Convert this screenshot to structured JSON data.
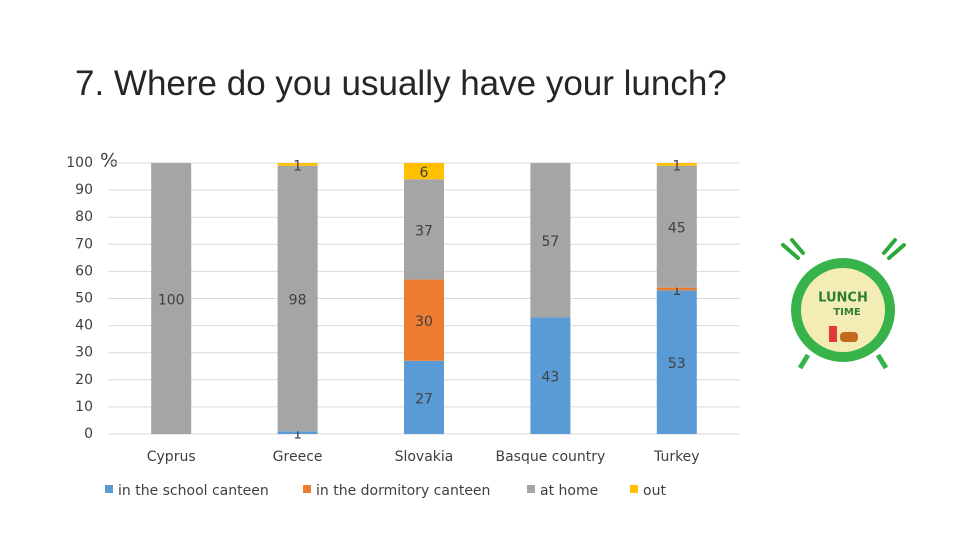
{
  "chart_data": {
    "type": "stacked_bar",
    "title": "7. Where do you usually have your lunch?",
    "y_unit": "%",
    "categories": [
      "Cyprus",
      "Greece",
      "Slovakia",
      "Basque country",
      "Turkey"
    ],
    "series": [
      {
        "name": "in the school canteen",
        "color": "#5b9bd5",
        "values": [
          null,
          1,
          27,
          43,
          53
        ]
      },
      {
        "name": "in the dormitory canteen",
        "color": "#ed7d31",
        "values": [
          null,
          null,
          30,
          null,
          1
        ]
      },
      {
        "name": "at home",
        "color": "#a5a5a5",
        "values": [
          100,
          98,
          37,
          57,
          45
        ]
      },
      {
        "name": "out",
        "color": "#ffc000",
        "values": [
          null,
          1,
          6,
          null,
          1
        ]
      }
    ],
    "ylim": [
      0,
      100
    ],
    "yticks": [
      0,
      10,
      20,
      30,
      40,
      50,
      60,
      70,
      80,
      90,
      100
    ],
    "grid": true,
    "legend": "bottom"
  },
  "illustration_text": [
    "LUNCH",
    "TIME"
  ]
}
